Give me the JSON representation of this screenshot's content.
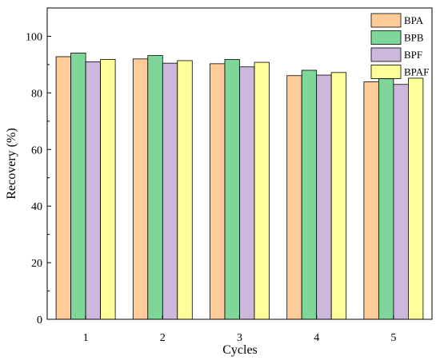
{
  "chart_data": {
    "type": "bar",
    "title": "",
    "xlabel": "Cycles",
    "ylabel": "Recovery (%)",
    "categories": [
      "1",
      "2",
      "3",
      "4",
      "5"
    ],
    "ylim": [
      0,
      110
    ],
    "yticks": [
      0,
      20,
      40,
      60,
      80,
      100
    ],
    "grid": false,
    "legend_position": "top-right",
    "series": [
      {
        "name": "BPA",
        "color": "#FFCC99",
        "values": [
          92.8,
          92.0,
          90.3,
          86.1,
          83.9
        ]
      },
      {
        "name": "BPB",
        "color": "#7FD69A",
        "values": [
          94.1,
          93.2,
          91.8,
          88.0,
          85.0
        ]
      },
      {
        "name": "BPF",
        "color": "#CDB8DD",
        "values": [
          91.0,
          90.5,
          89.2,
          86.3,
          83.0
        ]
      },
      {
        "name": "BPAF",
        "color": "#FFFF99",
        "values": [
          91.8,
          91.4,
          90.8,
          87.2,
          85.2
        ]
      }
    ]
  }
}
